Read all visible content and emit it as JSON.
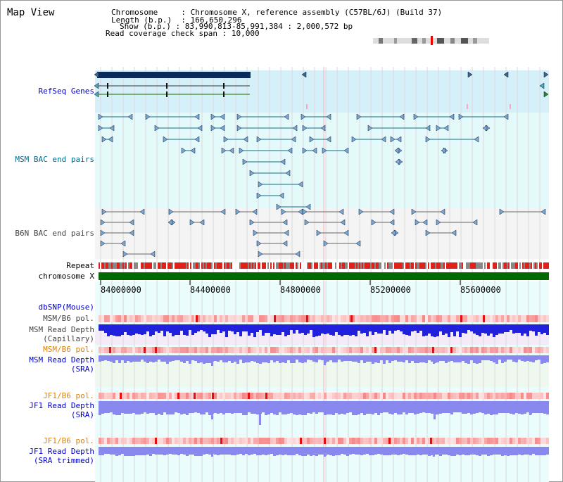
{
  "title": "Map View",
  "header": {
    "chromosome_key": "Chromosome",
    "chromosome_value": "Chromosome X, reference assembly (C57BL/6J) (Build 37)",
    "length_key": "Length (b.p.)",
    "length_value": "166,650,296",
    "show_key": "Show (b.p.)",
    "show_value": "83,990,813-85,991,384 : 2,000,572 bp",
    "coverage_key": "Read coverage check span",
    "coverage_value": "10,000"
  },
  "tracks": {
    "refseq": "RefSeq Genes",
    "msm_bac": "MSM BAC end pairs",
    "b6n_bac": "B6N BAC end pairs",
    "repeat": "Repeat",
    "chromosome": "chromosome X",
    "dbsnp": "dbSNP(Mouse)",
    "msm_b6_pol_1": "MSM/B6 pol.",
    "msm_read_depth_cap_1": "MSM Read Depth",
    "msm_read_depth_cap_2": "(Capillary)",
    "msm_b6_pol_2": "MSM/B6 pol.",
    "msm_read_depth_sra_1": "MSM Read Depth",
    "msm_read_depth_sra_2": "(SRA)",
    "jf1_b6_pol_1": "JF1/B6 pol.",
    "jf1_read_depth_sra_1": "JF1 Read Depth",
    "jf1_read_depth_sra_2": "(SRA)",
    "jf1_b6_pol_2": "JF1/B6 pol.",
    "jf1_read_depth_trim_1": "JF1 Read Depth",
    "jf1_read_depth_trim_2": "(SRA trimmed)"
  },
  "ruler": {
    "ticks": [
      "84000000",
      "84400000",
      "84800000",
      "85200000",
      "85600000"
    ]
  },
  "colors": {
    "refseq_bg": "#d6f0fa",
    "msm_bg": "#e4fafa",
    "b6n_bg": "#f4f4f4",
    "bac_line_msm": "#1a6a88",
    "bac_line_b6n": "#666666",
    "repeat_red": "#e0201a",
    "repeat_gray": "#888888",
    "chromosome_green": "#006a00",
    "depth_cap": "#2020dd",
    "depth_sra": "#8888ee",
    "pol_red": "#ee5555"
  }
}
